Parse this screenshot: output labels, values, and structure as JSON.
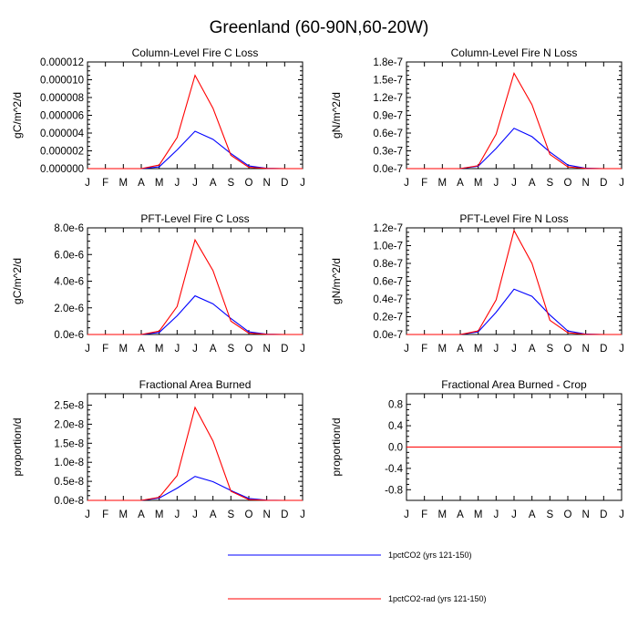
{
  "title": "Greenland (60-90N,60-20W)",
  "months": [
    "J",
    "F",
    "M",
    "A",
    "M",
    "J",
    "J",
    "A",
    "S",
    "O",
    "N",
    "D",
    "J"
  ],
  "legend": [
    {
      "label": "1pctCO2 (yrs 121-150)",
      "color": "#0000ff"
    },
    {
      "label": "1pctCO2-rad (yrs 121-150)",
      "color": "#ff0000"
    }
  ],
  "chart_data": [
    {
      "type": "line",
      "title": "Column-Level Fire C Loss",
      "ylabel": "gC/m^2/d",
      "ylim": [
        0,
        1.2e-05
      ],
      "yticks": [
        0,
        2e-06,
        4e-06,
        6e-06,
        8e-06,
        1e-05,
        1.2e-05
      ],
      "ytick_labels": [
        "0.000000",
        "0.000002",
        "0.000004",
        "0.000006",
        "0.000008",
        "0.000010",
        "0.000012"
      ],
      "series": [
        {
          "name": "1pctCO2 (yrs 121-150)",
          "color": "#0000ff",
          "values": [
            0,
            0,
            0,
            0,
            2e-07,
            2.1e-06,
            4.2e-06,
            3.3e-06,
            1.7e-06,
            3e-07,
            3e-08,
            0,
            0
          ]
        },
        {
          "name": "1pctCO2-rad (yrs 121-150)",
          "color": "#ff0000",
          "values": [
            0,
            0,
            0,
            0,
            4e-07,
            3.5e-06,
            1.05e-05,
            6.8e-06,
            1.5e-06,
            1.5e-07,
            2e-08,
            0,
            0
          ]
        }
      ]
    },
    {
      "type": "line",
      "title": "Column-Level Fire N Loss",
      "ylabel": "gN/m^2/d",
      "ylim": [
        0,
        1.8e-07
      ],
      "yticks": [
        0,
        3e-08,
        6e-08,
        9e-08,
        1.2e-07,
        1.5e-07,
        1.8e-07
      ],
      "ytick_labels": [
        "0.0e-7",
        "0.3e-7",
        "0.6e-7",
        "0.9e-7",
        "1.2e-7",
        "1.5e-7",
        "1.8e-7"
      ],
      "series": [
        {
          "name": "1pctCO2 (yrs 121-150)",
          "color": "#0000ff",
          "values": [
            0,
            0,
            0,
            0,
            4e-09,
            3.4e-08,
            6.8e-08,
            5.4e-08,
            2.8e-08,
            6e-09,
            6e-10,
            0,
            0
          ]
        },
        {
          "name": "1pctCO2-rad (yrs 121-150)",
          "color": "#ff0000",
          "values": [
            0,
            0,
            0,
            0,
            5e-09,
            5.8e-08,
            1.61e-07,
            1.08e-07,
            2.4e-08,
            3e-09,
            3e-10,
            0,
            0
          ]
        }
      ]
    },
    {
      "type": "line",
      "title": "PFT-Level Fire C Loss",
      "ylabel": "gC/m^2/d",
      "ylim": [
        0,
        8e-06
      ],
      "yticks": [
        0,
        2e-06,
        4e-06,
        6e-06,
        8e-06
      ],
      "ytick_labels": [
        "0.0e-6",
        "2.0e-6",
        "4.0e-6",
        "6.0e-6",
        "8.0e-6"
      ],
      "series": [
        {
          "name": "1pctCO2 (yrs 121-150)",
          "color": "#0000ff",
          "values": [
            0,
            0,
            0,
            0,
            1.5e-07,
            1.4e-06,
            2.9e-06,
            2.3e-06,
            1.2e-06,
            2e-07,
            2e-08,
            0,
            0
          ]
        },
        {
          "name": "1pctCO2-rad (yrs 121-150)",
          "color": "#ff0000",
          "values": [
            0,
            0,
            0,
            0,
            2.5e-07,
            2.1e-06,
            7.1e-06,
            4.8e-06,
            1e-06,
            1e-07,
            1e-08,
            0,
            0
          ]
        }
      ]
    },
    {
      "type": "line",
      "title": "PFT-Level Fire N Loss",
      "ylabel": "gN/m^2/d",
      "ylim": [
        0,
        1.2e-07
      ],
      "yticks": [
        0,
        2e-08,
        4e-08,
        6e-08,
        8e-08,
        1e-07,
        1.2e-07
      ],
      "ytick_labels": [
        "0.0e-7",
        "0.2e-7",
        "0.4e-7",
        "0.6e-7",
        "0.8e-7",
        "1.0e-7",
        "1.2e-7"
      ],
      "series": [
        {
          "name": "1pctCO2 (yrs 121-150)",
          "color": "#0000ff",
          "values": [
            0,
            0,
            0,
            0,
            3e-09,
            2.5e-08,
            5.1e-08,
            4.3e-08,
            2.2e-08,
            4e-09,
            4e-10,
            0,
            0
          ]
        },
        {
          "name": "1pctCO2-rad (yrs 121-150)",
          "color": "#ff0000",
          "values": [
            0,
            0,
            0,
            0,
            4e-09,
            3.9e-08,
            1.17e-07,
            8e-08,
            1.6e-08,
            2e-09,
            2e-10,
            0,
            0
          ]
        }
      ]
    },
    {
      "type": "line",
      "title": "Fractional Area Burned",
      "ylabel": "proportion/d",
      "ylim": [
        0,
        2.8e-08
      ],
      "yticks": [
        0,
        5e-09,
        1e-08,
        1.5e-08,
        2e-08,
        2.5e-08
      ],
      "ytick_labels": [
        "0.0e-8",
        "0.5e-8",
        "1.0e-8",
        "1.5e-8",
        "2.0e-8",
        "2.5e-8"
      ],
      "series": [
        {
          "name": "1pctCO2 (yrs 121-150)",
          "color": "#0000ff",
          "values": [
            0,
            0,
            0,
            0,
            6e-10,
            3.2e-09,
            6.3e-09,
            4.9e-09,
            2.6e-09,
            5e-10,
            5e-11,
            0,
            0
          ]
        },
        {
          "name": "1pctCO2-rad (yrs 121-150)",
          "color": "#ff0000",
          "values": [
            0,
            0,
            0,
            0,
            8e-10,
            6.5e-09,
            2.44e-08,
            1.56e-08,
            2.4e-09,
            2e-10,
            2e-11,
            0,
            0
          ]
        }
      ]
    },
    {
      "type": "line",
      "title": "Fractional Area Burned - Crop",
      "ylabel": "proportion/d",
      "ylim": [
        -1,
        1
      ],
      "yticks": [
        -0.8,
        -0.4,
        0,
        0.4,
        0.8
      ],
      "ytick_labels": [
        "-0.8",
        "-0.4",
        "0.0",
        "0.4",
        "0.8"
      ],
      "series": [
        {
          "name": "1pctCO2 (yrs 121-150)",
          "color": "#0000ff",
          "values": [
            0,
            0,
            0,
            0,
            0,
            0,
            0,
            0,
            0,
            0,
            0,
            0,
            0
          ]
        },
        {
          "name": "1pctCO2-rad (yrs 121-150)",
          "color": "#ff0000",
          "values": [
            0,
            0,
            0,
            0,
            0,
            0,
            0,
            0,
            0,
            0,
            0,
            0,
            0
          ]
        }
      ]
    }
  ]
}
